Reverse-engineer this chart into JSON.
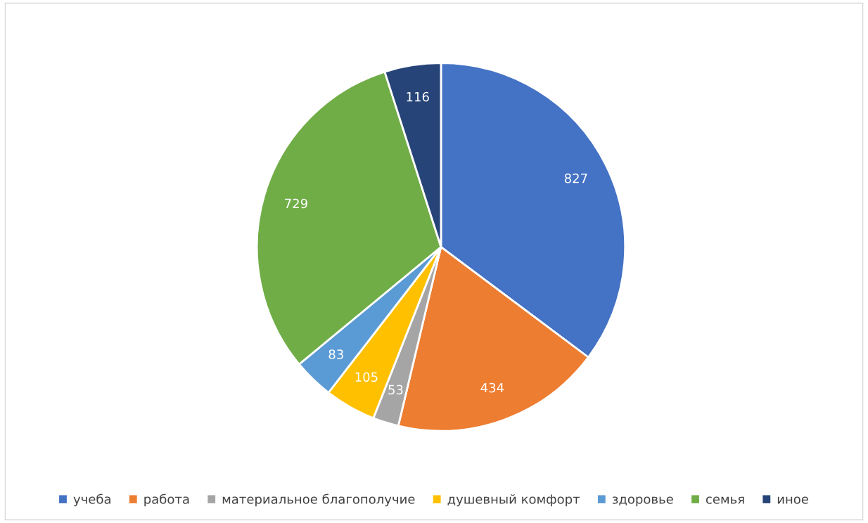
{
  "chart_data": {
    "type": "pie",
    "categories": [
      "учеба",
      "работа",
      "материальное благополучие",
      "душевный комфорт",
      "здоровье",
      "семья",
      "иное"
    ],
    "values": [
      827,
      434,
      53,
      105,
      83,
      729,
      116
    ],
    "colors": [
      "#4472c4",
      "#ed7d31",
      "#a5a5a5",
      "#ffc000",
      "#5b9bd5",
      "#70ad47",
      "#264478"
    ],
    "data_labels": true,
    "legend": "bottom"
  }
}
